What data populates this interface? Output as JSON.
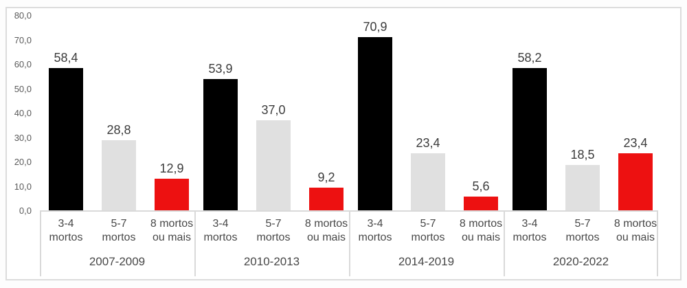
{
  "chart_data": {
    "type": "bar",
    "title": "",
    "ylim": [
      0,
      80
    ],
    "yticks": [
      "80,0",
      "70,0",
      "60,0",
      "50,0",
      "40,0",
      "30,0",
      "20,0",
      "10,0",
      "0,0"
    ],
    "grid": false,
    "legend": "none",
    "series": [
      {
        "name": "3-4 mortos",
        "label_lines": [
          "3-4",
          "mortos"
        ],
        "color": "#000000",
        "values": [
          58.4,
          53.9,
          70.9,
          58.2
        ],
        "value_labels": [
          "58,4",
          "53,9",
          "70,9",
          "58,2"
        ]
      },
      {
        "name": "5-7 mortos",
        "label_lines": [
          "5-7",
          "mortos"
        ],
        "color": "#e0e0e0",
        "values": [
          28.8,
          37.0,
          23.4,
          18.5
        ],
        "value_labels": [
          "28,8",
          "37,0",
          "23,4",
          "18,5"
        ]
      },
      {
        "name": "8 mortos ou mais",
        "label_lines": [
          "8 mortos",
          "ou mais"
        ],
        "color": "#ed1111",
        "values": [
          12.9,
          9.2,
          5.6,
          23.4
        ],
        "value_labels": [
          "12,9",
          "9,2",
          "5,6",
          "23,4"
        ]
      }
    ],
    "groups": [
      "2007-2009",
      "2010-2013",
      "2014-2019",
      "2020-2022"
    ]
  },
  "colors": {
    "frame_border": "#dcdcdc",
    "axis_line": "#d9d9d9",
    "tick_text": "#595959",
    "label_text": "#474747",
    "value_text": "#3b3b3b"
  }
}
